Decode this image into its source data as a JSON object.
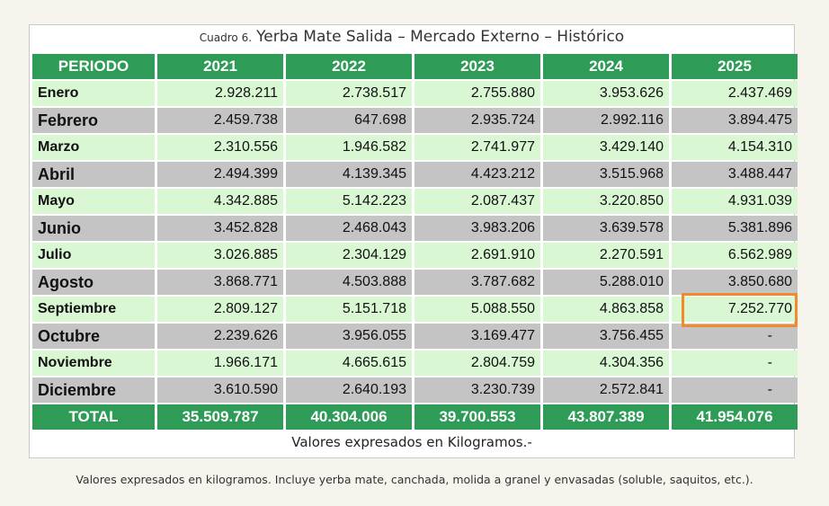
{
  "caption": {
    "label": "Cuadro 6.",
    "title": "Yerba Mate Salida  – Mercado Externo – Histórico"
  },
  "header": [
    "PERIODO",
    "2021",
    "2022",
    "2023",
    "2024",
    "2025"
  ],
  "rows": [
    [
      "Enero",
      "2.928.211",
      "2.738.517",
      "2.755.880",
      "3.953.626",
      "2.437.469"
    ],
    [
      "Febrero",
      "2.459.738",
      "647.698",
      "2.935.724",
      "2.992.116",
      "3.894.475"
    ],
    [
      "Marzo",
      "2.310.556",
      "1.946.582",
      "2.741.977",
      "3.429.140",
      "4.154.310"
    ],
    [
      "Abril",
      "2.494.399",
      "4.139.345",
      "4.423.212",
      "3.515.968",
      "3.488.447"
    ],
    [
      "Mayo",
      "4.342.885",
      "5.142.223",
      "2.087.437",
      "3.220.850",
      "4.931.039"
    ],
    [
      "Junio",
      "3.452.828",
      "2.468.043",
      "3.983.206",
      "3.639.578",
      "5.381.896"
    ],
    [
      "Julio",
      "3.026.885",
      "2.304.129",
      "2.691.910",
      "2.270.591",
      "6.562.989"
    ],
    [
      "Agosto",
      "3.868.771",
      "4.503.888",
      "3.787.682",
      "5.288.010",
      "3.850.680"
    ],
    [
      "Septiembre",
      "2.809.127",
      "5.151.718",
      "5.088.550",
      "4.863.858",
      "7.252.770"
    ],
    [
      "Octubre",
      "2.239.626",
      "3.956.055",
      "3.169.477",
      "3.756.455",
      "-"
    ],
    [
      "Noviembre",
      "1.966.171",
      "4.665.615",
      "2.804.759",
      "4.304.356",
      "-"
    ],
    [
      "Diciembre",
      "3.610.590",
      "2.640.193",
      "3.230.739",
      "2.572.841",
      "-"
    ]
  ],
  "total": [
    "TOTAL",
    "35.509.787",
    "40.304.006",
    "39.700.553",
    "43.807.389",
    "41.954.076"
  ],
  "units": "Valores expresados en Kilogramos.-",
  "footnote": "Valores expresados en kilogramos. Incluye yerba mate, canchada, molida a granel y envasadas (soluble, saquitos, etc.).",
  "highlight_color": "#f08a2a",
  "header_color": "#2e9b57"
}
